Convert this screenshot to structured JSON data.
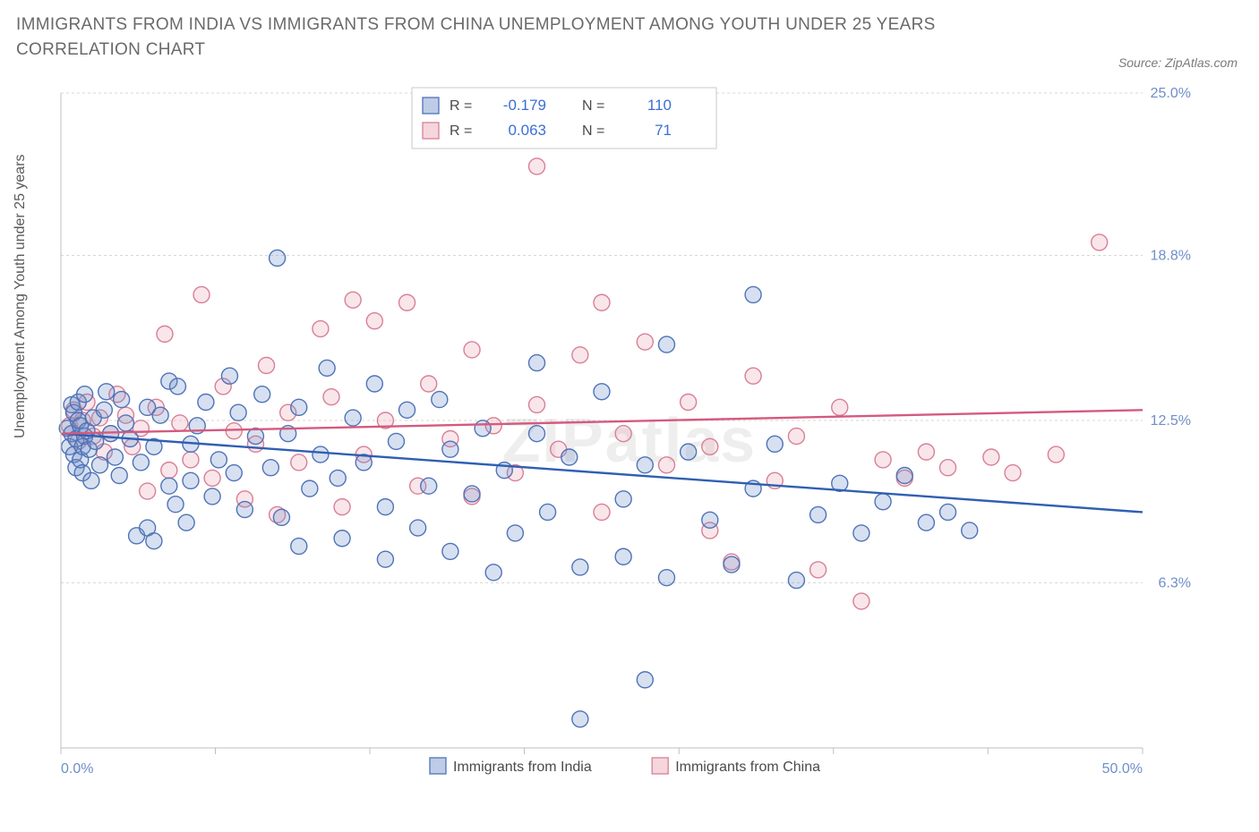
{
  "title": "IMMIGRANTS FROM INDIA VS IMMIGRANTS FROM CHINA UNEMPLOYMENT AMONG YOUTH UNDER 25 YEARS CORRELATION CHART",
  "source_label": "Source: ZipAtlas.com",
  "watermark": "ZIPatlas",
  "ylabel": "Unemployment Among Youth under 25 years",
  "chart": {
    "type": "scatter",
    "background_color": "#ffffff",
    "grid_color": "#d7d7d7",
    "axis_color": "#bfbfbf",
    "label_color": "#6f8fc9",
    "xlim": [
      0,
      50
    ],
    "ylim": [
      0,
      25
    ],
    "x_ticks": [
      0,
      7.14,
      14.28,
      21.42,
      28.57,
      35.71,
      42.85,
      50
    ],
    "y_grid": [
      6.3,
      12.5,
      18.8,
      25.0
    ],
    "x_tick_labels": {
      "0": "0.0%",
      "50": "50.0%"
    },
    "y_tick_labels": {
      "6.3": "6.3%",
      "12.5": "12.5%",
      "18.8": "18.8%",
      "25.0": "25.0%"
    },
    "marker_radius": 9,
    "marker_stroke_width": 1.4,
    "marker_fill_opacity": 0.28,
    "trendline_width": 2.4
  },
  "series": [
    {
      "key": "india",
      "name": "Immigrants from India",
      "color": "#6f8fc9",
      "stroke": "#4f73b8",
      "line_color": "#2f5fb3",
      "R": "-0.179",
      "N": "110",
      "trend": {
        "x1": 0,
        "y1": 12.0,
        "x2": 50,
        "y2": 9.0
      },
      "points": [
        [
          0.3,
          12.2
        ],
        [
          0.4,
          11.5
        ],
        [
          0.5,
          13.1
        ],
        [
          0.5,
          12.0
        ],
        [
          0.6,
          12.8
        ],
        [
          0.6,
          11.2
        ],
        [
          0.7,
          10.7
        ],
        [
          0.7,
          11.8
        ],
        [
          0.8,
          12.5
        ],
        [
          0.8,
          13.2
        ],
        [
          0.9,
          11.0
        ],
        [
          0.9,
          12.3
        ],
        [
          1.0,
          11.5
        ],
        [
          1.0,
          10.5
        ],
        [
          1.1,
          11.9
        ],
        [
          1.1,
          13.5
        ],
        [
          1.2,
          12.1
        ],
        [
          1.3,
          11.4
        ],
        [
          1.4,
          10.2
        ],
        [
          1.5,
          12.6
        ],
        [
          1.6,
          11.7
        ],
        [
          1.8,
          10.8
        ],
        [
          2.0,
          12.9
        ],
        [
          2.1,
          13.6
        ],
        [
          2.3,
          12.0
        ],
        [
          2.5,
          11.1
        ],
        [
          2.7,
          10.4
        ],
        [
          2.8,
          13.3
        ],
        [
          3.0,
          12.4
        ],
        [
          3.2,
          11.8
        ],
        [
          3.5,
          8.1
        ],
        [
          3.7,
          10.9
        ],
        [
          4.0,
          13.0
        ],
        [
          4.0,
          8.4
        ],
        [
          4.3,
          11.5
        ],
        [
          4.3,
          7.9
        ],
        [
          4.6,
          12.7
        ],
        [
          5.0,
          14.0
        ],
        [
          5.0,
          10.0
        ],
        [
          5.3,
          9.3
        ],
        [
          5.4,
          13.8
        ],
        [
          5.8,
          8.6
        ],
        [
          6.0,
          11.6
        ],
        [
          6.0,
          10.2
        ],
        [
          6.3,
          12.3
        ],
        [
          6.7,
          13.2
        ],
        [
          7.0,
          9.6
        ],
        [
          7.3,
          11.0
        ],
        [
          7.8,
          14.2
        ],
        [
          8.0,
          10.5
        ],
        [
          8.2,
          12.8
        ],
        [
          8.5,
          9.1
        ],
        [
          9.0,
          11.9
        ],
        [
          9.3,
          13.5
        ],
        [
          9.7,
          10.7
        ],
        [
          10.0,
          18.7
        ],
        [
          10.2,
          8.8
        ],
        [
          10.5,
          12.0
        ],
        [
          11.0,
          13.0
        ],
        [
          11.0,
          7.7
        ],
        [
          11.5,
          9.9
        ],
        [
          12.0,
          11.2
        ],
        [
          12.3,
          14.5
        ],
        [
          12.8,
          10.3
        ],
        [
          13.0,
          8.0
        ],
        [
          13.5,
          12.6
        ],
        [
          14.0,
          10.9
        ],
        [
          14.5,
          13.9
        ],
        [
          15.0,
          9.2
        ],
        [
          15.0,
          7.2
        ],
        [
          15.5,
          11.7
        ],
        [
          16.0,
          12.9
        ],
        [
          16.5,
          8.4
        ],
        [
          17.0,
          10.0
        ],
        [
          17.5,
          13.3
        ],
        [
          18.0,
          11.4
        ],
        [
          18.0,
          7.5
        ],
        [
          19.0,
          9.7
        ],
        [
          19.5,
          12.2
        ],
        [
          20.0,
          6.7
        ],
        [
          20.5,
          10.6
        ],
        [
          21.0,
          8.2
        ],
        [
          22.0,
          14.7
        ],
        [
          22.0,
          12.0
        ],
        [
          22.5,
          9.0
        ],
        [
          23.5,
          11.1
        ],
        [
          24.0,
          6.9
        ],
        [
          24.0,
          1.1
        ],
        [
          25.0,
          13.6
        ],
        [
          26.0,
          9.5
        ],
        [
          26.0,
          7.3
        ],
        [
          27.0,
          2.6
        ],
        [
          27.0,
          10.8
        ],
        [
          28.0,
          15.4
        ],
        [
          28.0,
          6.5
        ],
        [
          29.0,
          11.3
        ],
        [
          30.0,
          8.7
        ],
        [
          31.0,
          7.0
        ],
        [
          32.0,
          17.3
        ],
        [
          32.0,
          9.9
        ],
        [
          33.0,
          11.6
        ],
        [
          34.0,
          6.4
        ],
        [
          35.0,
          8.9
        ],
        [
          36.0,
          10.1
        ],
        [
          37.0,
          8.2
        ],
        [
          38.0,
          9.4
        ],
        [
          39.0,
          10.4
        ],
        [
          40.0,
          8.6
        ],
        [
          41.0,
          9.0
        ],
        [
          42.0,
          8.3
        ]
      ]
    },
    {
      "key": "china",
      "name": "Immigrants from China",
      "color": "#e9a4b4",
      "stroke": "#d97f96",
      "line_color": "#d45a7e",
      "R": "0.063",
      "N": "71",
      "trend": {
        "x1": 0,
        "y1": 12.0,
        "x2": 50,
        "y2": 12.9
      },
      "points": [
        [
          0.4,
          12.3
        ],
        [
          0.6,
          12.9
        ],
        [
          0.8,
          11.7
        ],
        [
          1.0,
          12.5
        ],
        [
          1.2,
          13.2
        ],
        [
          1.5,
          11.9
        ],
        [
          1.8,
          12.6
        ],
        [
          2.0,
          11.3
        ],
        [
          2.3,
          12.0
        ],
        [
          2.6,
          13.5
        ],
        [
          3.0,
          12.7
        ],
        [
          3.3,
          11.5
        ],
        [
          3.7,
          12.2
        ],
        [
          4.0,
          9.8
        ],
        [
          4.4,
          13.0
        ],
        [
          4.8,
          15.8
        ],
        [
          5.0,
          10.6
        ],
        [
          5.5,
          12.4
        ],
        [
          6.0,
          11.0
        ],
        [
          6.5,
          17.3
        ],
        [
          7.0,
          10.3
        ],
        [
          7.5,
          13.8
        ],
        [
          8.0,
          12.1
        ],
        [
          8.5,
          9.5
        ],
        [
          9.0,
          11.6
        ],
        [
          9.5,
          14.6
        ],
        [
          10.0,
          8.9
        ],
        [
          10.5,
          12.8
        ],
        [
          11.0,
          10.9
        ],
        [
          12.0,
          16.0
        ],
        [
          12.5,
          13.4
        ],
        [
          13.0,
          9.2
        ],
        [
          13.5,
          17.1
        ],
        [
          14.0,
          11.2
        ],
        [
          14.5,
          16.3
        ],
        [
          15.0,
          12.5
        ],
        [
          16.0,
          17.0
        ],
        [
          16.5,
          10.0
        ],
        [
          17.0,
          13.9
        ],
        [
          18.0,
          11.8
        ],
        [
          19.0,
          15.2
        ],
        [
          19.0,
          9.6
        ],
        [
          20.0,
          12.3
        ],
        [
          21.0,
          10.5
        ],
        [
          22.0,
          22.2
        ],
        [
          22.0,
          13.1
        ],
        [
          23.0,
          11.4
        ],
        [
          24.0,
          15.0
        ],
        [
          25.0,
          17.0
        ],
        [
          25.0,
          9.0
        ],
        [
          26.0,
          12.0
        ],
        [
          27.0,
          15.5
        ],
        [
          28.0,
          10.8
        ],
        [
          29.0,
          13.2
        ],
        [
          30.0,
          8.3
        ],
        [
          30.0,
          11.5
        ],
        [
          31.0,
          7.1
        ],
        [
          32.0,
          14.2
        ],
        [
          33.0,
          10.2
        ],
        [
          34.0,
          11.9
        ],
        [
          35.0,
          6.8
        ],
        [
          36.0,
          13.0
        ],
        [
          37.0,
          5.6
        ],
        [
          38.0,
          11.0
        ],
        [
          39.0,
          10.3
        ],
        [
          40.0,
          11.3
        ],
        [
          41.0,
          10.7
        ],
        [
          43.0,
          11.1
        ],
        [
          44.0,
          10.5
        ],
        [
          46.0,
          11.2
        ],
        [
          48.0,
          19.3
        ]
      ]
    }
  ],
  "legend_top": {
    "cols": [
      "R =",
      "N ="
    ]
  },
  "legend_bottom": {
    "items": [
      "Immigrants from India",
      "Immigrants from China"
    ]
  }
}
